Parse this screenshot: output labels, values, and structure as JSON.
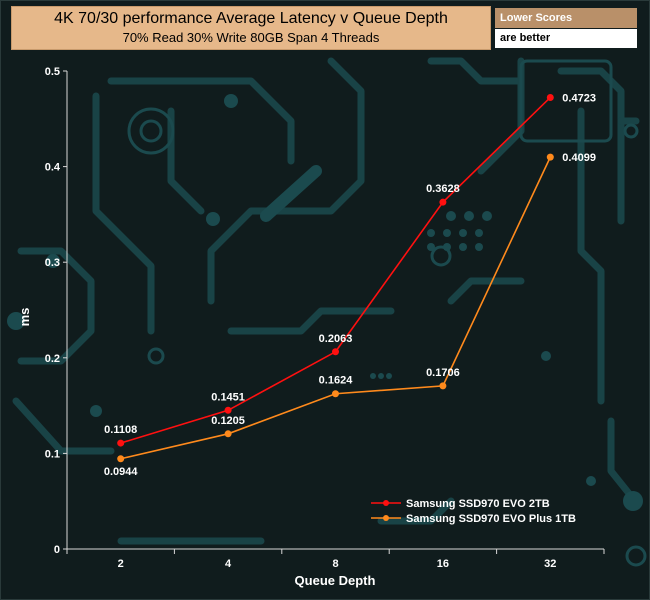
{
  "header": {
    "title": "4K 70/30 performance Average Latency v Queue Depth",
    "subtitle": "70% Read 30% Write 80GB Span 4 Threads"
  },
  "note": {
    "line1": "Lower Scores",
    "line2": "are better"
  },
  "colors": {
    "background": "#101c1d",
    "circuit": "#1b4a4e",
    "axis": "#d8d8d8",
    "series_red": "#ff1010",
    "series_orange": "#ff8a1c"
  },
  "chart_data": {
    "type": "line",
    "title": "4K 70/30 performance Average Latency v Queue Depth",
    "subtitle": "70% Read 30% Write 80GB Span 4 Threads",
    "xlabel": "Queue Depth",
    "ylabel": "ms",
    "categories": [
      "2",
      "4",
      "8",
      "16",
      "32"
    ],
    "ylim": [
      0,
      0.5
    ],
    "yticks": [
      "0",
      "0.1",
      "0.2",
      "0.3",
      "0.4",
      "0.5"
    ],
    "grid": false,
    "legend_position": "bottom-right",
    "series": [
      {
        "name": "Samsung SSD970 EVO 2TB",
        "color": "#ff1010",
        "values": [
          0.1108,
          0.1451,
          0.2063,
          0.3628,
          0.4723
        ],
        "labels": [
          "0.1108",
          "0.1451",
          "0.2063",
          "0.3628",
          "0.4723"
        ]
      },
      {
        "name": "Samsung SSD970 EVO Plus 1TB",
        "color": "#ff8a1c",
        "values": [
          0.0944,
          0.1205,
          0.1624,
          0.1706,
          0.4099
        ],
        "labels": [
          "0.0944",
          "0.1205",
          "0.1624",
          "0.1706",
          "0.4099"
        ]
      }
    ]
  }
}
